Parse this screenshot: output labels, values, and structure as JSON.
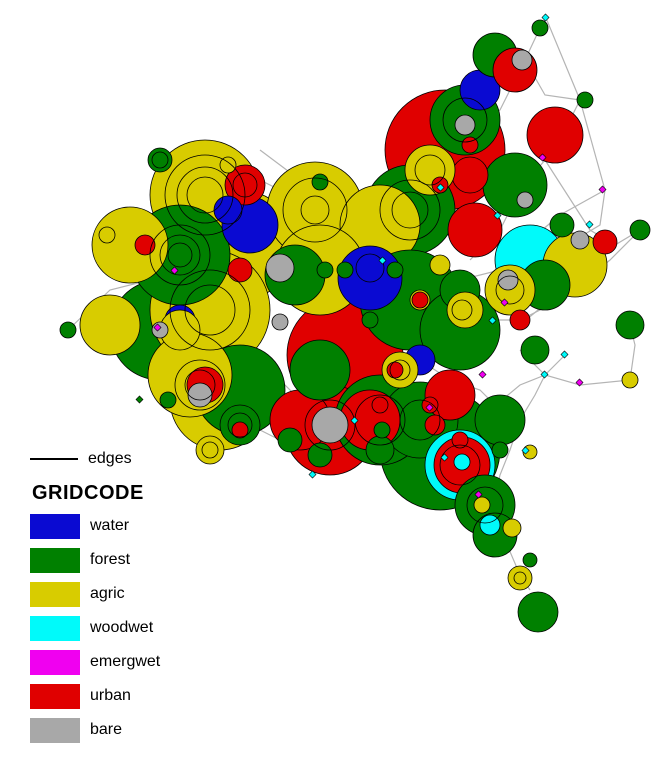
{
  "legend": {
    "edges_label": "edges",
    "title": "GRIDCODE",
    "items": [
      {
        "label": "water",
        "color": "#0a0ad2"
      },
      {
        "label": "forest",
        "color": "#008000"
      },
      {
        "label": "agric",
        "color": "#d8cc00"
      },
      {
        "label": "woodwet",
        "color": "#00fafa"
      },
      {
        "label": "emergwet",
        "color": "#f000f0"
      },
      {
        "label": "urban",
        "color": "#e00000"
      },
      {
        "label": "bare",
        "color": "#a8a8a8"
      }
    ]
  },
  "colors": {
    "edge": "#b4b4b4",
    "outline": "#000000"
  }
}
